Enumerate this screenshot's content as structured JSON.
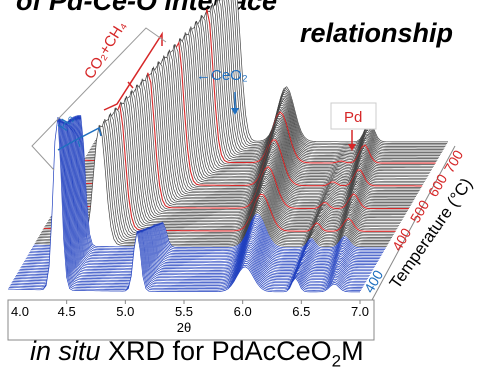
{
  "header": {
    "title_fragment_top": "of Pd-Ce-O interface",
    "title_fragment": "relationship"
  },
  "caption": {
    "prefix": "in situ",
    "rest": " XRD for PdAcCeO",
    "sub": "2",
    "suffix": "M"
  },
  "chart_data": {
    "type": "waterfall-line",
    "xlabel": "2θ",
    "x_ticks": [
      "4.0",
      "4.5",
      "5.0",
      "5.5",
      "6.0",
      "6.5",
      "7.0"
    ],
    "xlim": [
      4.0,
      7.0
    ],
    "depth_axis_label": "Temperature (°C)",
    "depth_ticks": [
      {
        "label": "400",
        "color": "#1f6fbf"
      },
      {
        "label": "400",
        "color": "#d62728"
      },
      {
        "label": "500",
        "color": "#d62728"
      },
      {
        "label": "600",
        "color": "#d62728"
      },
      {
        "label": "700",
        "color": "#d62728"
      }
    ],
    "segments": [
      {
        "name": "H₂",
        "color": "#1f3fbf",
        "count": 30
      },
      {
        "name": "CO₂+CH₄",
        "color": "#444444",
        "count": 70
      }
    ],
    "peaks": [
      {
        "label": "H₂",
        "color": "#1f6fbf"
      },
      {
        "label": "CO₂+CH₄",
        "color": "#d62728"
      },
      {
        "label": "←CeO₂",
        "color": "#1f6fbf"
      },
      {
        "label": "Pd",
        "color": "#d62728"
      }
    ]
  }
}
